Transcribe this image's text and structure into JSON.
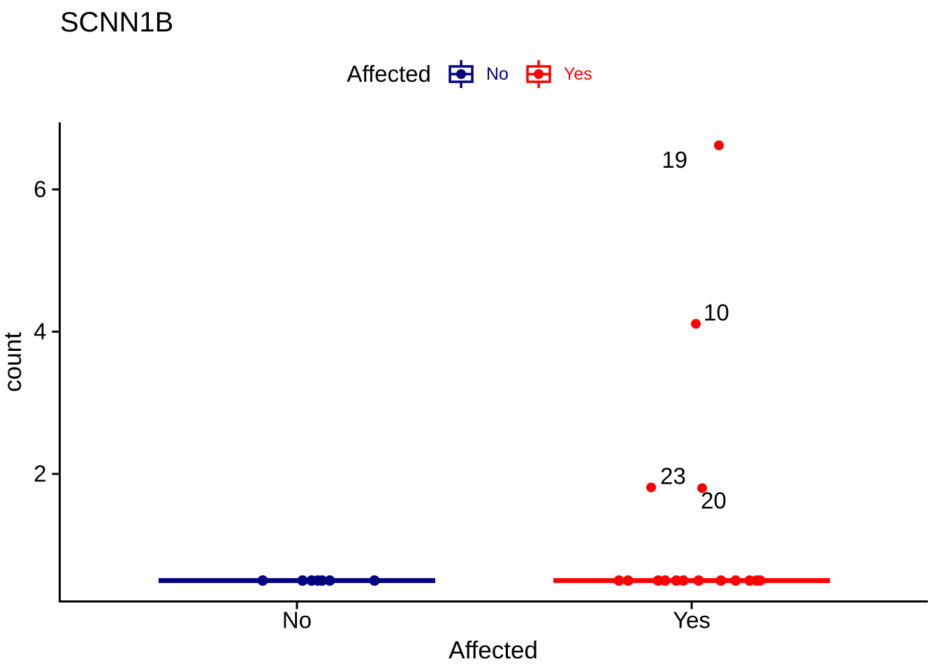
{
  "title": "SCNN1B",
  "legend": {
    "title": "Affected",
    "entries": [
      {
        "label": "No",
        "color": "#000080"
      },
      {
        "label": "Yes",
        "color": "#ff0000"
      }
    ]
  },
  "axis_color": "#000000",
  "chart_data": {
    "type": "boxplot",
    "title": "SCNN1B",
    "subtitle": "",
    "xlabel": "Affected",
    "ylabel": "count",
    "categories": [
      "No",
      "Yes"
    ],
    "yticks": [
      2,
      4,
      6
    ],
    "ylim": [
      0.2,
      6.95
    ],
    "grid": false,
    "legend_position": "top-center",
    "legend_title": "Affected",
    "series": [
      {
        "name": "No",
        "color": "#000080",
        "median": 0.5,
        "box_min": 0.5,
        "box_max": 0.5,
        "points": [
          {
            "value": 0.5,
            "jitter": -49
          },
          {
            "value": 0.5,
            "jitter": 8
          },
          {
            "value": 0.5,
            "jitter": 21
          },
          {
            "value": 0.5,
            "jitter": 30
          },
          {
            "value": 0.5,
            "jitter": 36
          },
          {
            "value": 0.5,
            "jitter": 47
          },
          {
            "value": 0.5,
            "jitter": 111
          }
        ],
        "outliers": []
      },
      {
        "name": "Yes",
        "color": "#ff0000",
        "median": 0.5,
        "box_min": 0.5,
        "box_max": 0.5,
        "points": [
          {
            "value": 0.5,
            "jitter": -104
          },
          {
            "value": 0.5,
            "jitter": -91
          },
          {
            "value": 0.5,
            "jitter": -48
          },
          {
            "value": 0.5,
            "jitter": -38
          },
          {
            "value": 0.5,
            "jitter": -22
          },
          {
            "value": 0.5,
            "jitter": -12
          },
          {
            "value": 0.5,
            "jitter": 10
          },
          {
            "value": 0.5,
            "jitter": 42
          },
          {
            "value": 0.5,
            "jitter": 63
          },
          {
            "value": 0.5,
            "jitter": 83
          },
          {
            "value": 0.5,
            "jitter": 93
          },
          {
            "value": 0.5,
            "jitter": 98
          }
        ],
        "outliers": [
          {
            "value": 6.62,
            "jitter": 39,
            "label": "19",
            "label_anchor": "end",
            "label_dx": -45,
            "label_dy": 32
          },
          {
            "value": 4.11,
            "jitter": 6,
            "label": "10",
            "label_anchor": "start",
            "label_dx": 11,
            "label_dy": -5
          },
          {
            "value": 1.81,
            "jitter": -58,
            "label": "23",
            "label_anchor": "start",
            "label_dx": 13,
            "label_dy": -5
          },
          {
            "value": 1.8,
            "jitter": 15,
            "label": "20",
            "label_anchor": "start",
            "label_dx": -2,
            "label_dy": 29
          }
        ]
      }
    ]
  }
}
